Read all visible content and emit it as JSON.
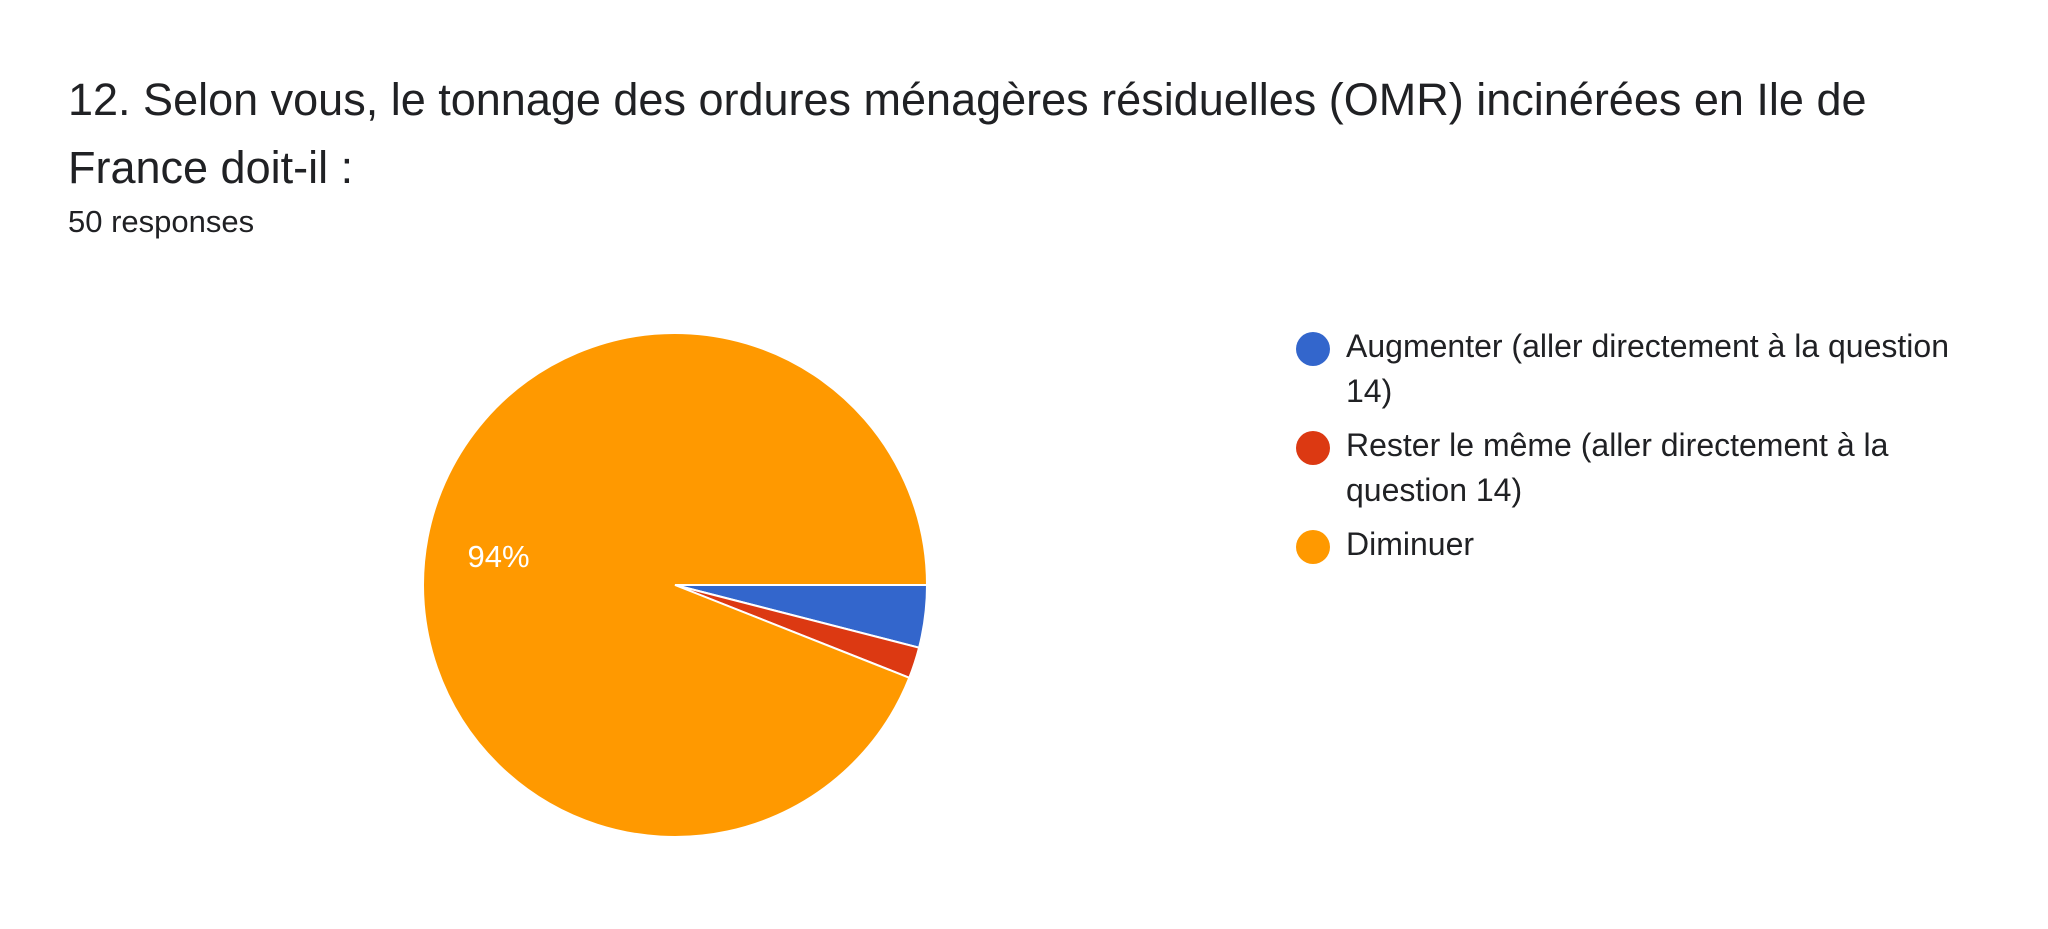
{
  "header": {
    "title": "12. Selon vous, le tonnage des ordures ménagères résiduelles (OMR) incinérées en Ile de France doit-il :",
    "responses": "50 responses"
  },
  "chart_data": {
    "type": "pie",
    "title": "12. Selon vous, le tonnage des ordures ménagères résiduelles (OMR) incinérées en Ile de France doit-il :",
    "categories": [
      "Augmenter (aller directement à la question 14)",
      "Rester le même (aller directement à la question 14)",
      "Diminuer"
    ],
    "values": [
      4,
      2,
      94
    ],
    "colors": [
      "#3366cc",
      "#dc3912",
      "#ff9900"
    ],
    "data_labels": [
      "",
      "",
      "94%"
    ],
    "legend_position": "right"
  }
}
